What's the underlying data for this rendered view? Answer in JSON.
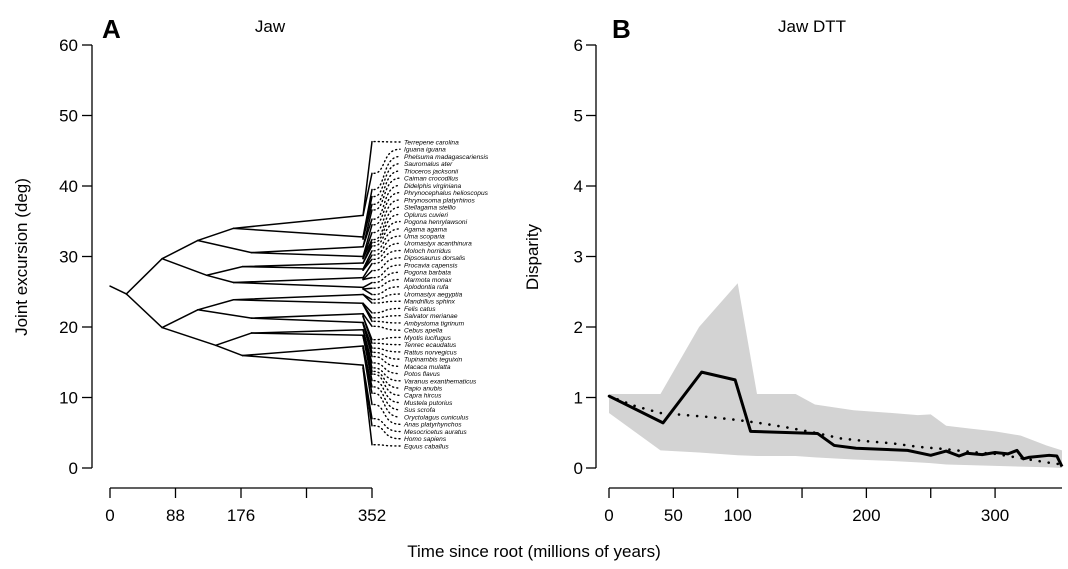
{
  "xlabel": "Time since root (millions of years)",
  "chart_data": [
    {
      "type": "line",
      "panel": "A",
      "title": "Jaw",
      "ylabel": "Joint excursion (deg)",
      "ylim": [
        0,
        60
      ],
      "yticks": [
        0,
        10,
        20,
        30,
        40,
        50,
        60
      ],
      "xlim": [
        0,
        352
      ],
      "xticks": [
        0,
        88,
        176,
        264,
        352
      ],
      "xtick_labels": [
        "0",
        "88",
        "176",
        "",
        "352"
      ],
      "root_value": 25.8,
      "taxa": [
        {
          "name": "Terrepene carolina",
          "value": 46.3
        },
        {
          "name": "Iguana iguana",
          "value": 41.8
        },
        {
          "name": "Phelsuma madagascariensis",
          "value": 39.5
        },
        {
          "name": "Sauromalus ater",
          "value": 38.5
        },
        {
          "name": "Trioceros jacksonii",
          "value": 37.4
        },
        {
          "name": "Caiman crocodilus",
          "value": 36.6
        },
        {
          "name": "Didelphis virginiana",
          "value": 35.3
        },
        {
          "name": "Phrynocephalus helioscopus",
          "value": 34.5
        },
        {
          "name": "Phrynosoma platyrhinos",
          "value": 33.4
        },
        {
          "name": "Stellagama stellio",
          "value": 32.4
        },
        {
          "name": "Oplurus cuvieri",
          "value": 32.0
        },
        {
          "name": "Pogona henrylawsoni",
          "value": 31.5
        },
        {
          "name": "Agama agama",
          "value": 30.8
        },
        {
          "name": "Uma scoparia",
          "value": 30.2
        },
        {
          "name": "Uromastyx acanthinura",
          "value": 29.6
        },
        {
          "name": "Moloch horridus",
          "value": 29.0
        },
        {
          "name": "Dipsosaurus dorsalis",
          "value": 28.0
        },
        {
          "name": "Procavia capensis",
          "value": 27.0
        },
        {
          "name": "Pogona barbata",
          "value": 26.3
        },
        {
          "name": "Marmota monax",
          "value": 25.5
        },
        {
          "name": "Aplodontia rufa",
          "value": 24.6
        },
        {
          "name": "Uromastyx aegyptia",
          "value": 23.9
        },
        {
          "name": "Mandrillus sphinx",
          "value": 23.4
        },
        {
          "name": "Felis catus",
          "value": 22.0
        },
        {
          "name": "Salvator merianae",
          "value": 21.3
        },
        {
          "name": "Ambystoma tigrinum",
          "value": 20.8
        },
        {
          "name": "Cebus apella",
          "value": 20.1
        },
        {
          "name": "Myotis lucifugus",
          "value": 18.2
        },
        {
          "name": "Tenrec ecaudatus",
          "value": 17.7
        },
        {
          "name": "Rattus norvegicus",
          "value": 17.0
        },
        {
          "name": "Tupinambis teguixin",
          "value": 16.4
        },
        {
          "name": "Macaca mulatta",
          "value": 15.8
        },
        {
          "name": "Potos flavus",
          "value": 14.9
        },
        {
          "name": "Varanus exanthematicus",
          "value": 14.2
        },
        {
          "name": "Papio anubis",
          "value": 13.7
        },
        {
          "name": "Capra hircus",
          "value": 13.3
        },
        {
          "name": "Mustela putorius",
          "value": 12.4
        },
        {
          "name": "Sus scrofa",
          "value": 11.5
        },
        {
          "name": "Oryctolagus cuniculus",
          "value": 10.6
        },
        {
          "name": "Anas platyrhynchos",
          "value": 9.0
        },
        {
          "name": "Mesocricetus auratus",
          "value": 7.0
        },
        {
          "name": "Homo sapiens",
          "value": 6.0
        },
        {
          "name": "Equus caballus",
          "value": 3.3
        }
      ]
    },
    {
      "type": "line",
      "panel": "B",
      "title": "Jaw DTT",
      "ylabel": "Disparity",
      "ylim": [
        0,
        6
      ],
      "yticks": [
        0,
        1,
        2,
        3,
        4,
        5,
        6
      ],
      "xlim": [
        0,
        352
      ],
      "xticks": [
        0,
        50,
        100,
        150,
        200,
        250,
        300
      ],
      "xtick_labels": [
        "0",
        "50",
        "100",
        "",
        "200",
        "",
        "300"
      ],
      "observed": {
        "x": [
          0,
          42,
          72,
          98,
          110,
          162,
          175,
          192,
          232,
          250,
          262,
          272,
          278,
          290,
          300,
          310,
          317,
          322,
          326,
          342,
          348,
          352
        ],
        "y": [
          1.02,
          0.64,
          1.36,
          1.25,
          0.52,
          0.49,
          0.32,
          0.28,
          0.25,
          0.18,
          0.24,
          0.17,
          0.21,
          0.19,
          0.22,
          0.2,
          0.25,
          0.13,
          0.15,
          0.18,
          0.17,
          0.02
        ]
      },
      "null_median": {
        "x": [
          0,
          20,
          40,
          60,
          80,
          100,
          120,
          140,
          160,
          180,
          200,
          220,
          240,
          260,
          280,
          300,
          320,
          340,
          352
        ],
        "y": [
          1.02,
          0.88,
          0.78,
          0.75,
          0.72,
          0.68,
          0.63,
          0.57,
          0.5,
          0.42,
          0.38,
          0.35,
          0.3,
          0.27,
          0.23,
          0.2,
          0.14,
          0.08,
          0.05
        ]
      },
      "null_range": {
        "x": [
          0,
          40,
          70,
          100,
          115,
          145,
          160,
          190,
          220,
          240,
          250,
          262,
          280,
          300,
          320,
          340,
          352
        ],
        "upper": [
          1.05,
          1.05,
          2.0,
          2.62,
          1.05,
          1.05,
          0.9,
          0.82,
          0.78,
          0.75,
          0.76,
          0.6,
          0.56,
          0.52,
          0.46,
          0.32,
          0.25
        ],
        "lower": [
          0.78,
          0.25,
          0.22,
          0.18,
          0.17,
          0.17,
          0.15,
          0.12,
          0.1,
          0.08,
          0.07,
          0.05,
          0.04,
          0.03,
          0.02,
          0.01,
          0.0
        ]
      }
    }
  ]
}
